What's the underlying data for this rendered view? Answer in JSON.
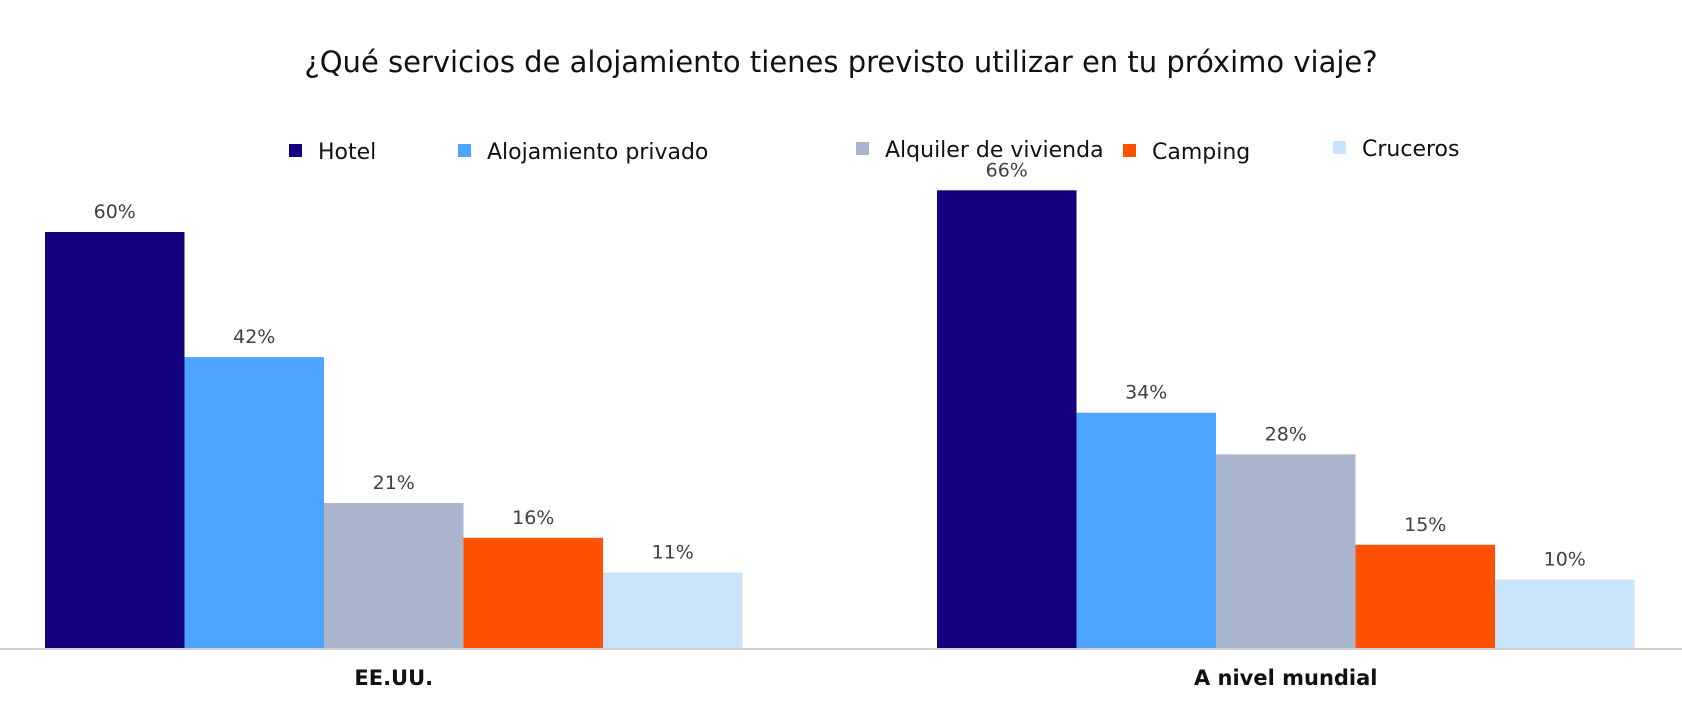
{
  "chart_data": {
    "type": "bar",
    "title": "¿Qué servicios de alojamiento tienes previsto utilizar en tu próximo viaje?",
    "categories": [
      "EE.UU.",
      "A nivel mundial"
    ],
    "series": [
      {
        "name": "Hotel",
        "color": "#14007f",
        "values": [
          60,
          66
        ],
        "labels": [
          "60%",
          "66%"
        ]
      },
      {
        "name": "Alojamiento privado",
        "color": "#4ea5ff",
        "values": [
          42,
          34
        ],
        "labels": [
          "42%",
          "34%"
        ]
      },
      {
        "name": "Alquiler de vivienda",
        "color": "#a9b4cd",
        "values": [
          21,
          28
        ],
        "labels": [
          "21%",
          "28%"
        ]
      },
      {
        "name": "Camping",
        "color": "#ff5100",
        "values": [
          16,
          15
        ],
        "labels": [
          "16%",
          "15%"
        ]
      },
      {
        "name": "Cruceros",
        "color": "#c9e3fb",
        "values": [
          11,
          10
        ],
        "labels": [
          "11%",
          "10%"
        ]
      }
    ],
    "ylim": [
      0,
      70
    ],
    "grid": false,
    "legend_position": "top"
  }
}
